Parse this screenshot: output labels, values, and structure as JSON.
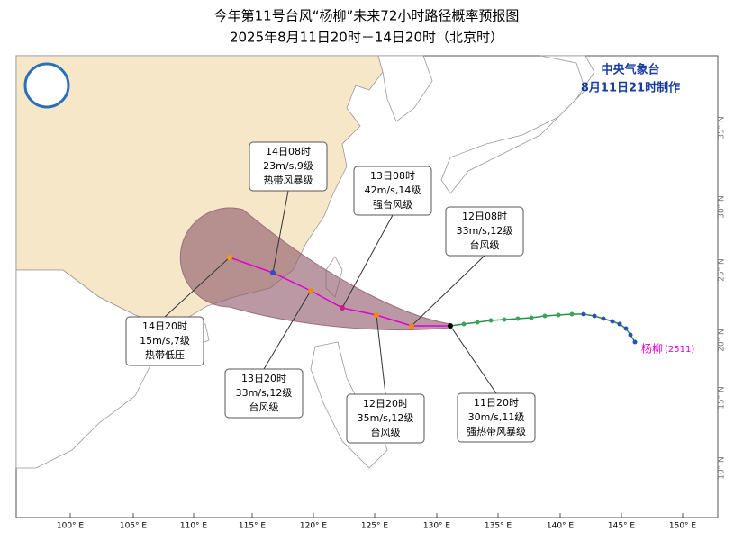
{
  "header": {
    "title": "今年第11号台风“杨柳”未来72小时路径概率预报图",
    "subtitle": "2025年8月11日20时－14日20时（北京时）",
    "agency": "中央气象台",
    "issued": "8月11日21时制作"
  },
  "storm": {
    "name": "杨柳",
    "code": "(2511)"
  },
  "lon_labels": [
    "100° E",
    "105° E",
    "110° E",
    "115° E",
    "120° E",
    "125° E",
    "130° E",
    "135° E",
    "140° E",
    "145° E",
    "150° E"
  ],
  "lat_labels": [
    "35° N",
    "30° N",
    "25° N",
    "20° N",
    "15° N",
    "10° N"
  ],
  "points": [
    {
      "time": "11日20时",
      "wind": "30m/s,11级",
      "grade": "强热带风暴级"
    },
    {
      "time": "12日08时",
      "wind": "33m/s,12级",
      "grade": "台风级"
    },
    {
      "time": "12日20时",
      "wind": "35m/s,12级",
      "grade": "台风级"
    },
    {
      "time": "13日08时",
      "wind": "42m/s,14级",
      "grade": "强台风级"
    },
    {
      "time": "13日20时",
      "wind": "33m/s,12级",
      "grade": "台风级"
    },
    {
      "time": "14日08时",
      "wind": "23m/s,9级",
      "grade": "热带风暴级"
    },
    {
      "time": "14日20时",
      "wind": "15m/s,7级",
      "grade": "热带低压"
    }
  ]
}
